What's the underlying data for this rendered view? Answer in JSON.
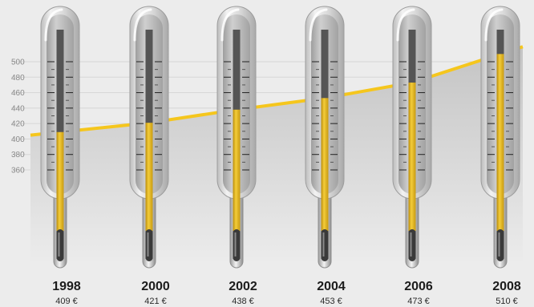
{
  "chart_data": {
    "type": "bar",
    "title": "",
    "xlabel": "",
    "ylabel": "",
    "categories": [
      "1998",
      "2000",
      "2002",
      "2004",
      "2006",
      "2008"
    ],
    "values": [
      409,
      421,
      438,
      453,
      473,
      510
    ],
    "value_labels": [
      "409 €",
      "421 €",
      "438 €",
      "453 €",
      "473 €",
      "510 €"
    ],
    "unit": "€",
    "y_ticks": [
      360,
      380,
      400,
      420,
      440,
      460,
      480,
      500
    ],
    "ylim": [
      340,
      520
    ],
    "grid": true,
    "legend": "none",
    "colors": {
      "mercury": "#e9b716",
      "mercury_light": "#f6d040",
      "trend_line": "#f5c61d",
      "area_fill": "#cacaca",
      "tube_empty": "#555555",
      "glass": "#d4d4d4",
      "gridline": "#d6d6d6",
      "background": "#ececec"
    }
  }
}
